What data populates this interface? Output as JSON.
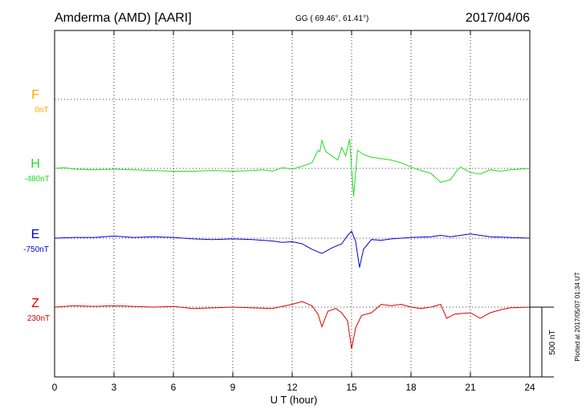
{
  "header": {
    "station": "Amderma (AMD)  [AARI]",
    "coords": "GG ( 69.46°,  61.41°)",
    "date": "2017/04/06"
  },
  "footer_note": "Plotted at 2017/05/07 01:34 UT",
  "scale_bar": {
    "label": "500 nT",
    "value_nT": 500
  },
  "chart_data": {
    "type": "line",
    "xlabel": "U T (hour)",
    "xlim": [
      0,
      24
    ],
    "xticks": [
      "0",
      "3",
      "6",
      "9",
      "12",
      "15",
      "18",
      "21",
      "24"
    ],
    "grid": true,
    "components": [
      {
        "name": "F",
        "baseline": "0nT",
        "color": "#ffa500",
        "data": []
      },
      {
        "name": "H",
        "baseline": "-480nT",
        "color": "#22dd22",
        "data": [
          [
            0,
            0
          ],
          [
            0.5,
            5
          ],
          [
            1,
            -5
          ],
          [
            2,
            -10
          ],
          [
            3,
            -5
          ],
          [
            4,
            -10
          ],
          [
            5,
            -15
          ],
          [
            6,
            -20
          ],
          [
            7,
            -20
          ],
          [
            8,
            -15
          ],
          [
            9,
            -20
          ],
          [
            10,
            -15
          ],
          [
            10.5,
            -10
          ],
          [
            11,
            -20
          ],
          [
            11.5,
            5
          ],
          [
            12,
            -5
          ],
          [
            12.5,
            15
          ],
          [
            13,
            40
          ],
          [
            13.3,
            130
          ],
          [
            13.4,
            120
          ],
          [
            13.5,
            200
          ],
          [
            13.7,
            120
          ],
          [
            14,
            90
          ],
          [
            14.3,
            60
          ],
          [
            14.5,
            150
          ],
          [
            14.7,
            90
          ],
          [
            14.9,
            210
          ],
          [
            15,
            0
          ],
          [
            15.1,
            -200
          ],
          [
            15.3,
            130
          ],
          [
            15.6,
            100
          ],
          [
            16,
            80
          ],
          [
            16.5,
            70
          ],
          [
            17,
            60
          ],
          [
            17.5,
            40
          ],
          [
            18,
            10
          ],
          [
            18.5,
            -15
          ],
          [
            19,
            -35
          ],
          [
            19.5,
            -100
          ],
          [
            20,
            -80
          ],
          [
            20.3,
            -20
          ],
          [
            20.5,
            10
          ],
          [
            21,
            -30
          ],
          [
            21.5,
            -40
          ],
          [
            22,
            -10
          ],
          [
            22.5,
            -20
          ],
          [
            23,
            -10
          ],
          [
            24,
            0
          ]
        ]
      },
      {
        "name": "E",
        "baseline": "-750nT",
        "color": "#0000dd",
        "data": [
          [
            0,
            0
          ],
          [
            1,
            5
          ],
          [
            2,
            5
          ],
          [
            3,
            15
          ],
          [
            4,
            5
          ],
          [
            5,
            10
          ],
          [
            6,
            5
          ],
          [
            7,
            -5
          ],
          [
            8,
            -10
          ],
          [
            9,
            -5
          ],
          [
            10,
            -10
          ],
          [
            11,
            -20
          ],
          [
            11.5,
            -30
          ],
          [
            12,
            -25
          ],
          [
            12.5,
            -40
          ],
          [
            13,
            -80
          ],
          [
            13.5,
            -110
          ],
          [
            14,
            -70
          ],
          [
            14.5,
            -40
          ],
          [
            14.8,
            20
          ],
          [
            15,
            50
          ],
          [
            15.2,
            -20
          ],
          [
            15.4,
            -210
          ],
          [
            15.6,
            -80
          ],
          [
            16,
            -10
          ],
          [
            16.5,
            -15
          ],
          [
            17,
            -5
          ],
          [
            18,
            5
          ],
          [
            19,
            10
          ],
          [
            19.5,
            20
          ],
          [
            20,
            10
          ],
          [
            21,
            30
          ],
          [
            22,
            10
          ],
          [
            23,
            5
          ],
          [
            24,
            0
          ]
        ]
      },
      {
        "name": "Z",
        "baseline": "230nT",
        "color": "#dd0000",
        "data": [
          [
            0,
            0
          ],
          [
            1,
            10
          ],
          [
            2,
            5
          ],
          [
            3,
            10
          ],
          [
            4,
            5
          ],
          [
            5,
            0
          ],
          [
            6,
            5
          ],
          [
            7,
            -10
          ],
          [
            8,
            -5
          ],
          [
            9,
            0
          ],
          [
            10,
            -5
          ],
          [
            11,
            -10
          ],
          [
            12,
            20
          ],
          [
            12.5,
            40
          ],
          [
            13,
            10
          ],
          [
            13.3,
            -50
          ],
          [
            13.5,
            -140
          ],
          [
            13.8,
            -30
          ],
          [
            14.2,
            -10
          ],
          [
            14.5,
            -40
          ],
          [
            14.8,
            -100
          ],
          [
            15,
            -300
          ],
          [
            15.2,
            -150
          ],
          [
            15.5,
            -60
          ],
          [
            16,
            -40
          ],
          [
            16.5,
            20
          ],
          [
            17,
            10
          ],
          [
            17.5,
            20
          ],
          [
            18,
            0
          ],
          [
            18.5,
            -10
          ],
          [
            19,
            0
          ],
          [
            19.5,
            20
          ],
          [
            19.8,
            -80
          ],
          [
            20.2,
            -50
          ],
          [
            21,
            -40
          ],
          [
            21.5,
            -80
          ],
          [
            22,
            -40
          ],
          [
            22.5,
            -20
          ],
          [
            23,
            -5
          ],
          [
            24,
            0
          ]
        ]
      }
    ]
  }
}
